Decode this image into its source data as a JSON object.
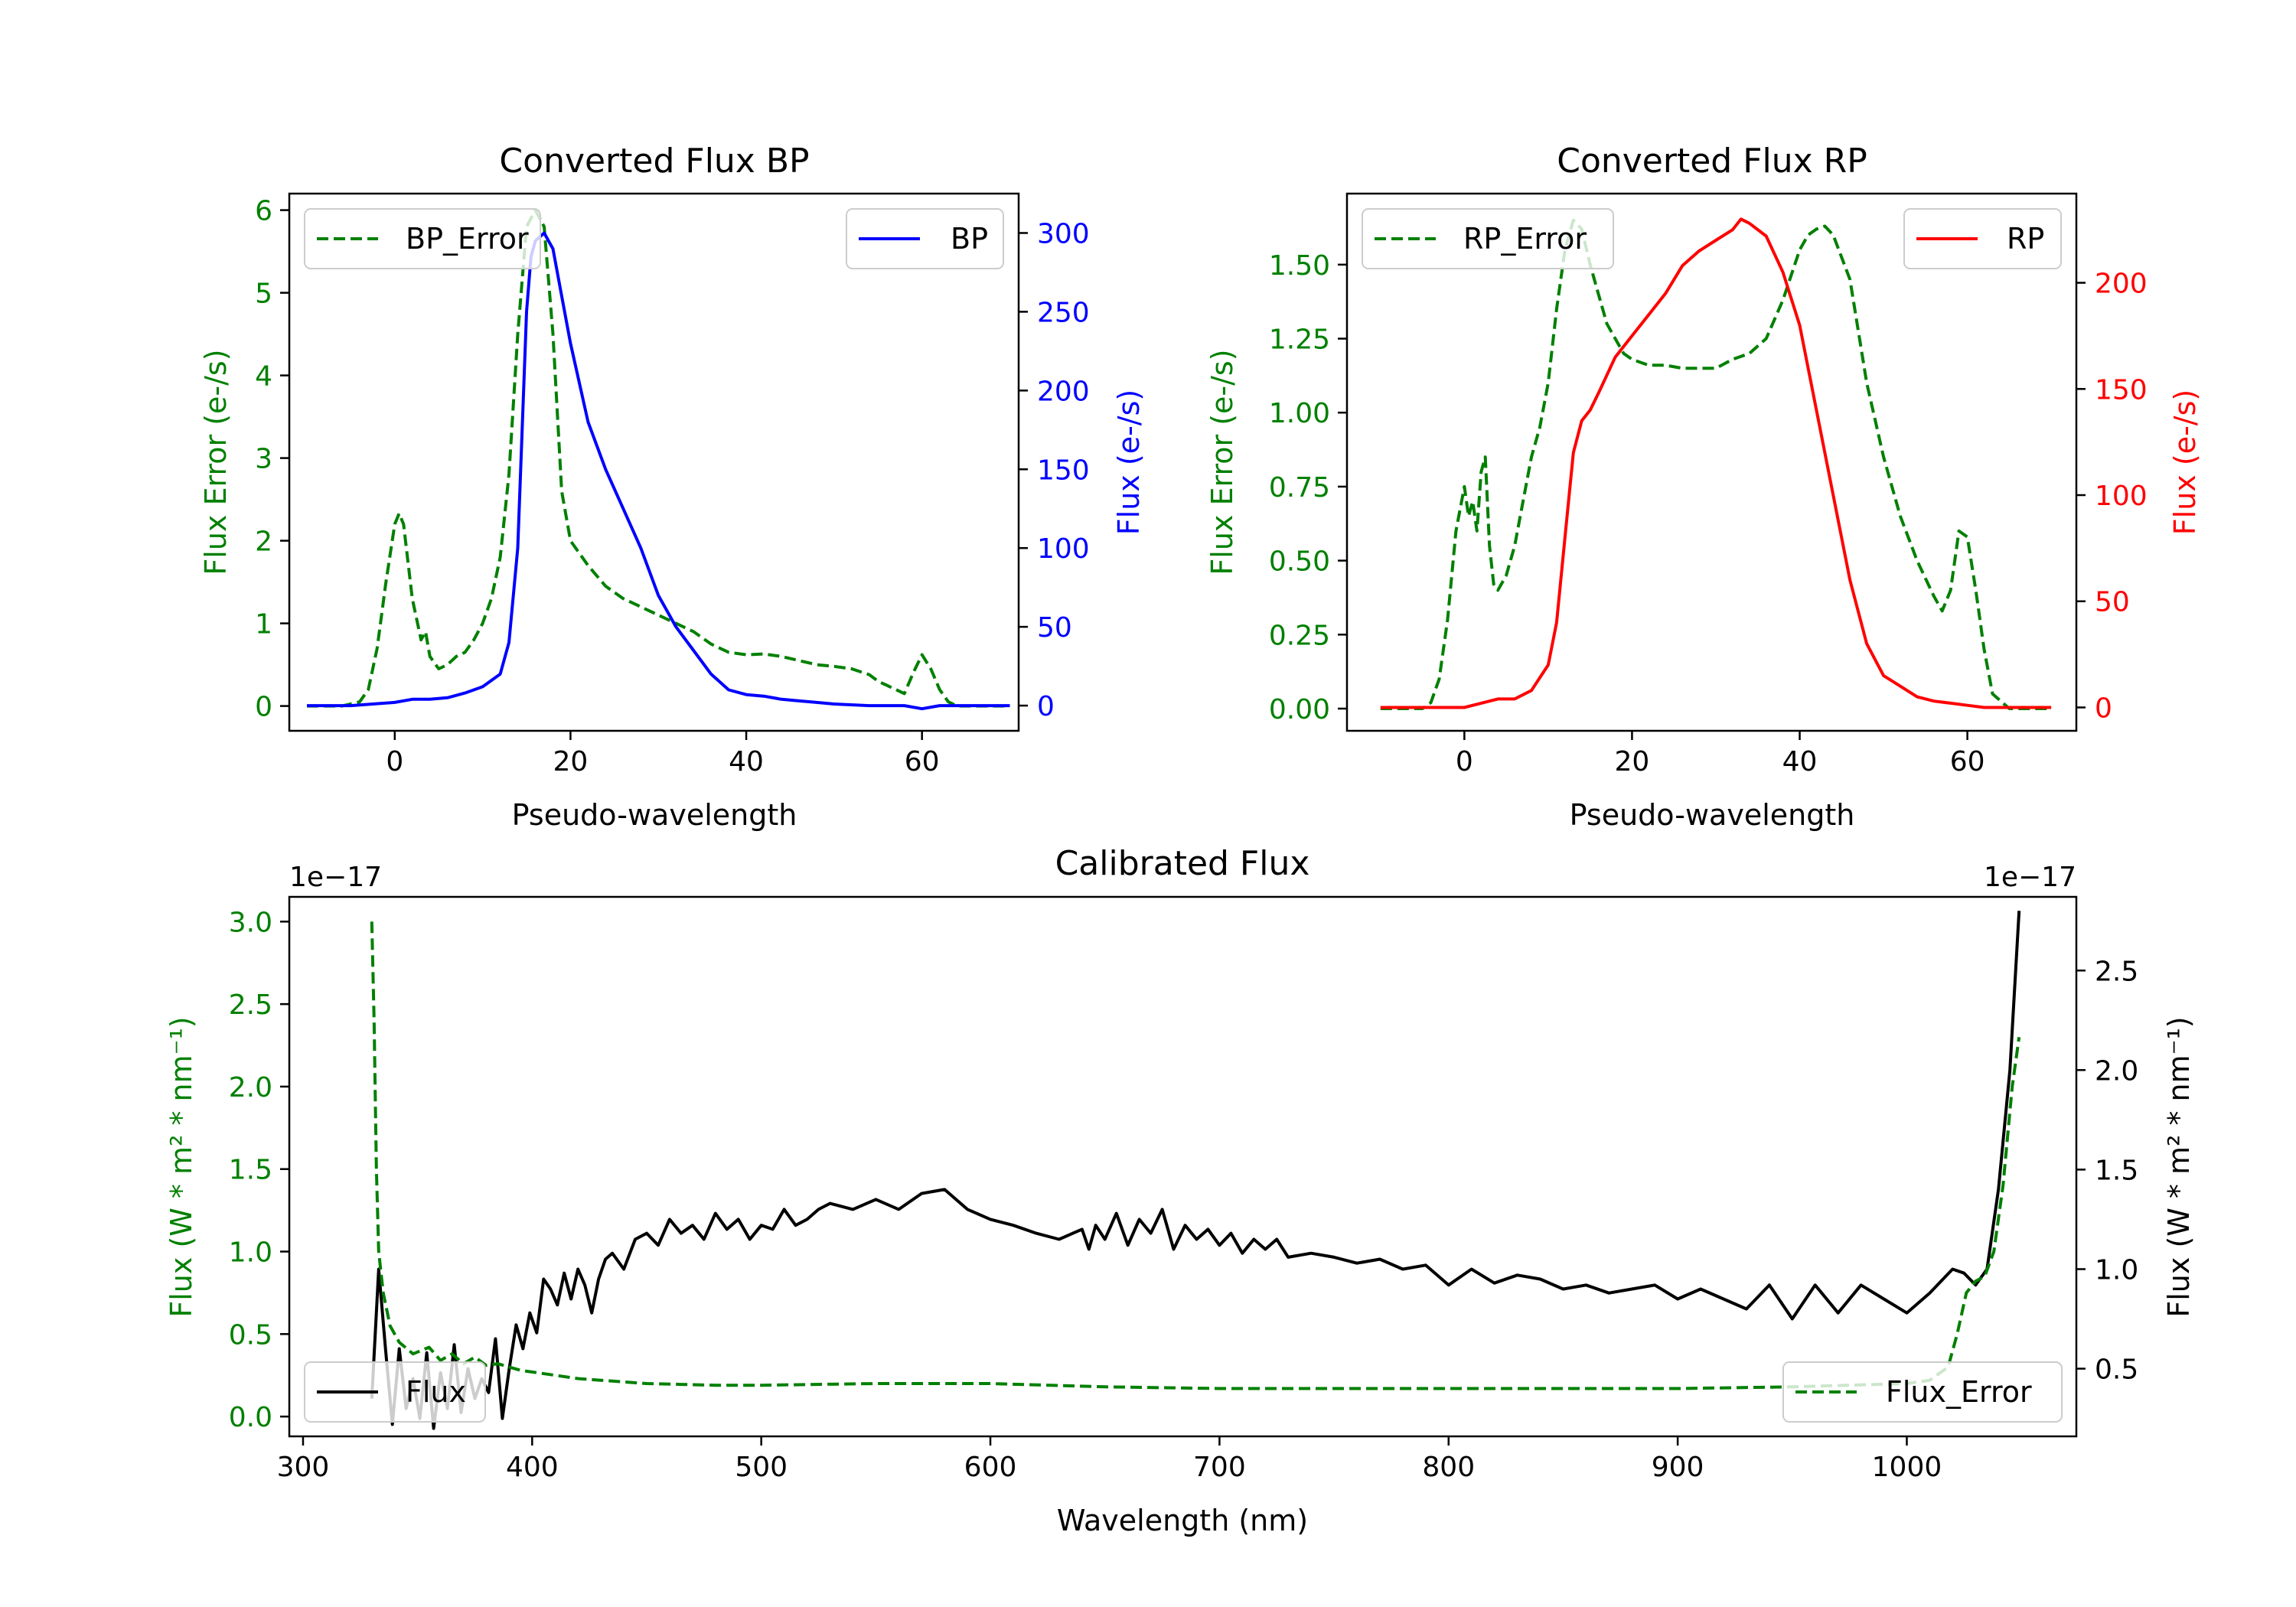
{
  "colors": {
    "error": "#008000",
    "bp": "#0000ff",
    "rp": "#ff0000",
    "flux": "#000000",
    "axis": "#000000"
  },
  "chart_data": [
    {
      "id": "bp",
      "type": "line",
      "title": "Converted Flux BP",
      "xlabel": "Pseudo-wavelength",
      "ylabel_left": "Flux Error (e-/s)",
      "ylabel_right": "Flux (e-/s)",
      "xlim": [
        -12,
        71
      ],
      "ylim_left": [
        -0.3,
        6.2
      ],
      "ylim_right": [
        -16,
        325
      ],
      "xticks": [
        0,
        20,
        40,
        60
      ],
      "yticks_left": [
        0,
        1,
        2,
        3,
        4,
        5,
        6
      ],
      "yticks_right": [
        0,
        50,
        100,
        150,
        200,
        250,
        300
      ],
      "legend_left": "BP_Error",
      "legend_right": "BP",
      "series": [
        {
          "name": "BP_Error",
          "axis": "left",
          "style": "dashed",
          "color": "#008000",
          "x": [
            -10,
            -6,
            -4,
            -3,
            -2,
            -1,
            0,
            0.5,
            1,
            2,
            3,
            3.5,
            4,
            5,
            6,
            7,
            8,
            9,
            10,
            11,
            12,
            13,
            14,
            15,
            16,
            17,
            18,
            19,
            20,
            22,
            24,
            26,
            28,
            30,
            32,
            34,
            36,
            38,
            40,
            42,
            44,
            46,
            48,
            50,
            52,
            54,
            55,
            56,
            57,
            58,
            59,
            60,
            61,
            62,
            63,
            64,
            66,
            68,
            70
          ],
          "y": [
            0.0,
            0.0,
            0.05,
            0.2,
            0.7,
            1.5,
            2.2,
            2.33,
            2.2,
            1.3,
            0.8,
            0.9,
            0.6,
            0.45,
            0.5,
            0.6,
            0.65,
            0.8,
            1.0,
            1.3,
            1.8,
            2.8,
            4.5,
            5.8,
            6.0,
            5.8,
            4.5,
            2.6,
            2.0,
            1.7,
            1.45,
            1.3,
            1.2,
            1.1,
            1.0,
            0.9,
            0.75,
            0.65,
            0.62,
            0.63,
            0.6,
            0.55,
            0.5,
            0.48,
            0.45,
            0.38,
            0.3,
            0.25,
            0.2,
            0.15,
            0.4,
            0.62,
            0.45,
            0.2,
            0.05,
            0.0,
            0.0,
            0.0,
            0.0
          ]
        },
        {
          "name": "BP",
          "axis": "right",
          "style": "solid",
          "color": "#0000ff",
          "x": [
            -10,
            -5,
            0,
            2,
            4,
            6,
            8,
            10,
            12,
            13,
            14,
            15,
            15.5,
            16,
            17,
            18,
            19,
            20,
            22,
            24,
            26,
            28,
            30,
            32,
            34,
            36,
            38,
            40,
            42,
            44,
            46,
            48,
            50,
            54,
            58,
            60,
            62,
            66,
            70
          ],
          "y": [
            0,
            0,
            2,
            4,
            4,
            5,
            8,
            12,
            20,
            40,
            100,
            250,
            285,
            295,
            300,
            290,
            260,
            230,
            180,
            150,
            125,
            100,
            70,
            50,
            35,
            20,
            10,
            7,
            6,
            4,
            3,
            2,
            1,
            0,
            0,
            -2,
            0,
            0,
            0
          ]
        }
      ]
    },
    {
      "id": "rp",
      "type": "line",
      "title": "Converted Flux RP",
      "xlabel": "Pseudo-wavelength",
      "ylabel_left": "Flux Error (e-/s)",
      "ylabel_right": "Flux (e-/s)",
      "xlim": [
        -14,
        73
      ],
      "ylim_left": [
        -0.075,
        1.74
      ],
      "ylim_right": [
        -11,
        242
      ],
      "xticks": [
        0,
        20,
        40,
        60
      ],
      "yticks_left": [
        0.0,
        0.25,
        0.5,
        0.75,
        1.0,
        1.25,
        1.5
      ],
      "yticks_right": [
        0,
        50,
        100,
        150,
        200
      ],
      "legend_left": "RP_Error",
      "legend_right": "RP",
      "series": [
        {
          "name": "RP_Error",
          "axis": "left",
          "style": "dashed",
          "color": "#008000",
          "x": [
            -10,
            -5,
            -4,
            -3,
            -2,
            -1,
            0,
            0.5,
            1,
            1.5,
            2,
            2.5,
            3,
            3.5,
            4,
            5,
            6,
            7,
            8,
            9,
            10,
            11,
            12,
            13,
            14,
            15,
            16,
            17,
            18,
            19,
            20,
            21,
            22,
            24,
            26,
            28,
            30,
            32,
            34,
            36,
            38,
            40,
            41,
            42,
            43,
            44,
            46,
            48,
            50,
            52,
            54,
            56,
            57,
            58,
            59,
            60,
            61,
            62,
            63,
            65,
            70
          ],
          "y": [
            0.0,
            0.0,
            0.02,
            0.1,
            0.3,
            0.6,
            0.75,
            0.65,
            0.7,
            0.6,
            0.8,
            0.85,
            0.55,
            0.42,
            0.4,
            0.45,
            0.55,
            0.7,
            0.85,
            0.95,
            1.1,
            1.35,
            1.55,
            1.65,
            1.62,
            1.5,
            1.4,
            1.3,
            1.25,
            1.2,
            1.18,
            1.17,
            1.16,
            1.16,
            1.15,
            1.15,
            1.15,
            1.18,
            1.2,
            1.25,
            1.38,
            1.55,
            1.6,
            1.62,
            1.63,
            1.6,
            1.45,
            1.1,
            0.85,
            0.65,
            0.5,
            0.38,
            0.33,
            0.4,
            0.6,
            0.58,
            0.4,
            0.2,
            0.05,
            0.0,
            0.0
          ]
        },
        {
          "name": "RP",
          "axis": "right",
          "style": "solid",
          "color": "#ff0000",
          "x": [
            -10,
            -5,
            0,
            2,
            4,
            6,
            8,
            10,
            11,
            12,
            13,
            14,
            15,
            16,
            18,
            20,
            22,
            24,
            26,
            28,
            30,
            32,
            33,
            34,
            36,
            38,
            40,
            42,
            44,
            46,
            48,
            50,
            52,
            54,
            56,
            58,
            60,
            62,
            66,
            70
          ],
          "y": [
            0,
            0,
            0,
            2,
            4,
            4,
            8,
            20,
            40,
            80,
            120,
            135,
            140,
            148,
            165,
            175,
            185,
            195,
            208,
            215,
            220,
            225,
            230,
            228,
            222,
            205,
            180,
            140,
            100,
            60,
            30,
            15,
            10,
            5,
            3,
            2,
            1,
            0,
            0,
            0
          ]
        }
      ]
    },
    {
      "id": "cal",
      "type": "line",
      "title": "Calibrated Flux",
      "xlabel": "Wavelength (nm)",
      "ylabel_left": "Flux (W * m² * nm⁻¹)",
      "ylabel_right": "Flux (W * m² * nm⁻¹)",
      "offset_left": "1e−17",
      "offset_right": "1e−17",
      "xlim": [
        294,
        1074
      ],
      "ylim_left": [
        -0.12,
        3.15
      ],
      "ylim_right": [
        0.16,
        2.87
      ],
      "xticks": [
        300,
        400,
        500,
        600,
        700,
        800,
        900,
        1000
      ],
      "yticks_left": [
        0.0,
        0.5,
        1.0,
        1.5,
        2.0,
        2.5,
        3.0
      ],
      "yticks_right": [
        0.5,
        1.0,
        1.5,
        2.0,
        2.5
      ],
      "legend_left": "Flux",
      "legend_right": "Flux_Error",
      "series": [
        {
          "name": "Flux",
          "axis": "right",
          "style": "solid",
          "color": "#000000",
          "x": [
            330,
            333,
            336,
            339,
            342,
            345,
            348,
            351,
            354,
            357,
            360,
            363,
            366,
            369,
            372,
            375,
            378,
            381,
            384,
            387,
            390,
            393,
            396,
            399,
            402,
            405,
            408,
            411,
            414,
            417,
            420,
            423,
            426,
            429,
            432,
            435,
            440,
            445,
            450,
            455,
            460,
            465,
            470,
            475,
            480,
            485,
            490,
            495,
            500,
            505,
            510,
            515,
            520,
            525,
            530,
            540,
            550,
            560,
            570,
            580,
            590,
            600,
            610,
            620,
            630,
            640,
            643,
            646,
            650,
            655,
            660,
            665,
            670,
            675,
            680,
            685,
            690,
            695,
            700,
            705,
            710,
            715,
            720,
            725,
            730,
            740,
            750,
            760,
            770,
            780,
            790,
            800,
            810,
            820,
            830,
            840,
            850,
            860,
            870,
            880,
            890,
            900,
            910,
            920,
            930,
            940,
            950,
            960,
            970,
            980,
            990,
            1000,
            1010,
            1020,
            1025,
            1030,
            1035,
            1040,
            1045,
            1049
          ],
          "y": [
            0.35,
            1.0,
            0.6,
            0.22,
            0.6,
            0.3,
            0.45,
            0.25,
            0.58,
            0.2,
            0.48,
            0.3,
            0.62,
            0.28,
            0.5,
            0.35,
            0.45,
            0.38,
            0.65,
            0.25,
            0.5,
            0.72,
            0.6,
            0.78,
            0.68,
            0.95,
            0.9,
            0.82,
            0.98,
            0.85,
            1.0,
            0.92,
            0.78,
            0.95,
            1.05,
            1.08,
            1.0,
            1.15,
            1.18,
            1.12,
            1.25,
            1.18,
            1.22,
            1.15,
            1.28,
            1.2,
            1.25,
            1.15,
            1.22,
            1.2,
            1.3,
            1.22,
            1.25,
            1.3,
            1.33,
            1.3,
            1.35,
            1.3,
            1.38,
            1.4,
            1.3,
            1.25,
            1.22,
            1.18,
            1.15,
            1.2,
            1.1,
            1.22,
            1.15,
            1.28,
            1.12,
            1.25,
            1.18,
            1.3,
            1.1,
            1.22,
            1.15,
            1.2,
            1.12,
            1.18,
            1.08,
            1.15,
            1.1,
            1.15,
            1.06,
            1.08,
            1.06,
            1.03,
            1.05,
            1.0,
            1.02,
            0.92,
            1.0,
            0.93,
            0.97,
            0.95,
            0.9,
            0.92,
            0.88,
            0.9,
            0.92,
            0.85,
            0.9,
            0.85,
            0.8,
            0.92,
            0.75,
            0.92,
            0.78,
            0.92,
            0.85,
            0.78,
            0.88,
            1.0,
            0.98,
            0.92,
            1.0,
            1.4,
            2.0,
            2.8
          ]
        },
        {
          "name": "Flux_Error",
          "axis": "left",
          "style": "dashed",
          "color": "#008000",
          "x": [
            330,
            331,
            332,
            333,
            335,
            338,
            342,
            348,
            355,
            360,
            365,
            370,
            375,
            380,
            385,
            390,
            395,
            400,
            410,
            420,
            430,
            450,
            480,
            500,
            550,
            600,
            650,
            700,
            750,
            800,
            850,
            900,
            950,
            1000,
            1010,
            1018,
            1022,
            1026,
            1030,
            1034,
            1038,
            1042,
            1046,
            1049
          ],
          "y": [
            3.0,
            2.4,
            1.5,
            1.0,
            0.75,
            0.55,
            0.45,
            0.38,
            0.42,
            0.34,
            0.38,
            0.32,
            0.36,
            0.31,
            0.32,
            0.3,
            0.28,
            0.27,
            0.25,
            0.23,
            0.22,
            0.2,
            0.19,
            0.19,
            0.2,
            0.2,
            0.18,
            0.17,
            0.17,
            0.17,
            0.17,
            0.17,
            0.18,
            0.2,
            0.22,
            0.3,
            0.5,
            0.75,
            0.82,
            0.85,
            1.0,
            1.4,
            2.0,
            2.3
          ]
        }
      ]
    }
  ]
}
